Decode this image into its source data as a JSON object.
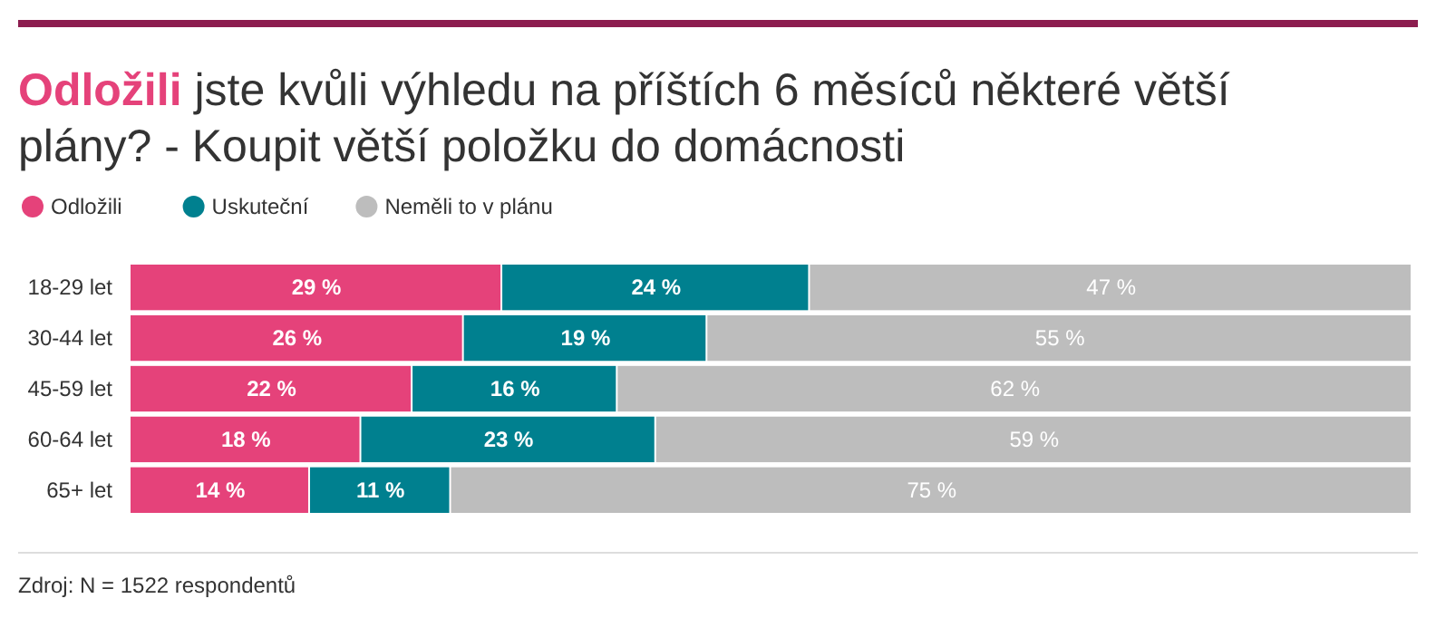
{
  "chart_data": {
    "type": "bar",
    "orientation": "horizontal",
    "stacked": true,
    "title": "Odložili jste kvůli výhledu na příštích 6 měsíců některé větší plány? - Koupit větší položku do domácnosti",
    "categories": [
      "18-29 let",
      "30-44 let",
      "45-59 let",
      "60-64 let",
      "65+ let"
    ],
    "series": [
      {
        "name": "Odložili",
        "color": "#e5427a",
        "values": [
          29,
          26,
          22,
          18,
          14
        ],
        "value_labels": [
          "29 %",
          "26 %",
          "22 %",
          "18 %",
          "14 %"
        ]
      },
      {
        "name": "Uskuteční",
        "color": "#00808f",
        "values": [
          24,
          19,
          16,
          23,
          11
        ],
        "value_labels": [
          "24 %",
          "19 %",
          "16 %",
          "23 %",
          "11 %"
        ]
      },
      {
        "name": "Neměli to v plánu",
        "color": "#bdbdbd",
        "values": [
          47,
          55,
          62,
          59,
          75
        ],
        "value_labels": [
          "47 %",
          "55 %",
          "62 %",
          "59 %",
          "75 %"
        ]
      }
    ],
    "xlim": [
      0,
      100
    ],
    "tick_labels": "y",
    "legend": "top left",
    "annotations": [
      "Zdroj: N = 1522 respondentů"
    ]
  }
}
